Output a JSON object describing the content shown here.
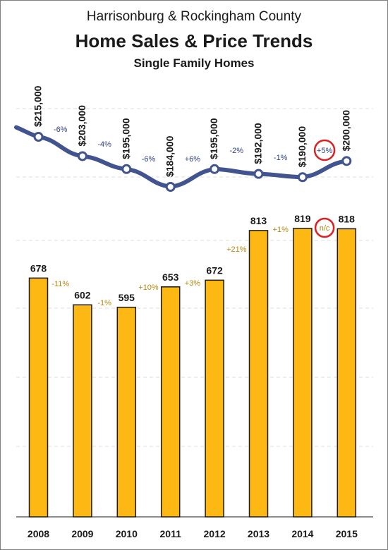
{
  "chart_data": [
    {
      "type": "line",
      "title": "Harrisonburg & Rockingham County",
      "subtitle": "Home Sales & Price Trends",
      "subtitle2": "Single Family Homes",
      "x": [
        "2008",
        "2009",
        "2010",
        "2011",
        "2012",
        "2013",
        "2014",
        "2015"
      ],
      "values": [
        215000,
        203000,
        195000,
        184000,
        195000,
        192000,
        190000,
        200000
      ],
      "labels": [
        "$215,000",
        "$203,000",
        "$195,000",
        "$184,000",
        "$195,000",
        "$192,000",
        "$190,000",
        "$200,000"
      ],
      "changes": [
        "-6%",
        "-4%",
        "-6%",
        "+6%",
        "-2%",
        "-1%",
        "+5%"
      ],
      "highlighted_change": "+5%",
      "color": "#42548f"
    },
    {
      "type": "bar",
      "categories": [
        "2008",
        "2009",
        "2010",
        "2011",
        "2012",
        "2013",
        "2014",
        "2015"
      ],
      "values": [
        678,
        602,
        595,
        653,
        672,
        813,
        819,
        818
      ],
      "changes": [
        "-11%",
        "-1%",
        "+10%",
        "+3%",
        "+21%",
        "+1%",
        "n/c"
      ],
      "highlighted_change": "n/c",
      "color": "#fdb813",
      "grid": true
    }
  ]
}
